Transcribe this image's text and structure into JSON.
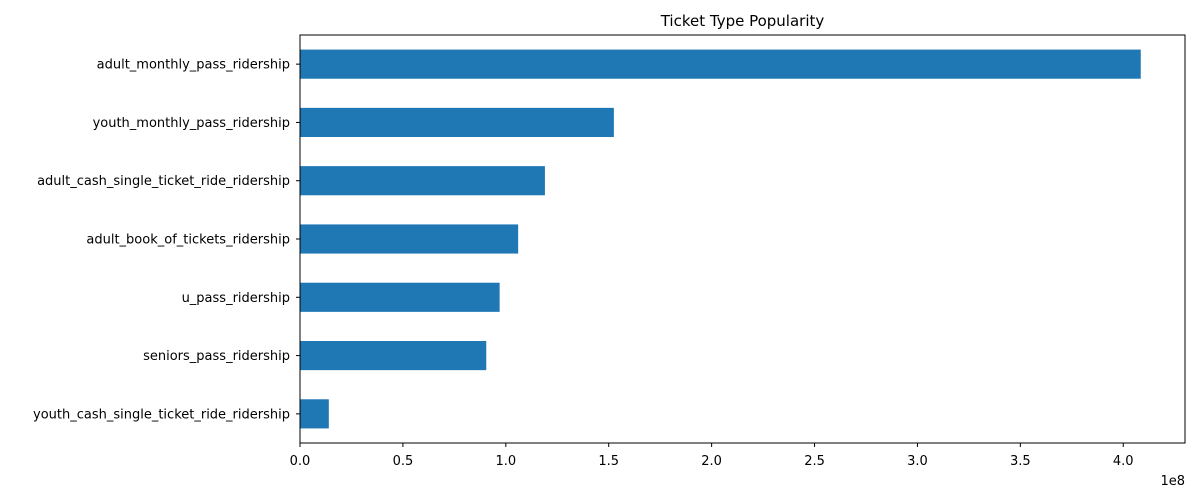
{
  "chart_data": {
    "type": "bar",
    "orientation": "horizontal",
    "title": "Ticket Type Popularity",
    "xlabel": "",
    "ylabel": "",
    "x_offset_label": "1e8",
    "xlim": [
      0,
      4.3
    ],
    "xticks": [
      "0.0",
      "0.5",
      "1.0",
      "1.5",
      "2.0",
      "2.5",
      "3.0",
      "3.5",
      "4.0"
    ],
    "xtick_values": [
      0,
      0.5,
      1.0,
      1.5,
      2.0,
      2.5,
      3.0,
      3.5,
      4.0
    ],
    "categories": [
      "adult_monthly_pass_ridership",
      "youth_monthly_pass_ridership",
      "adult_cash_single_ticket_ride_ridership",
      "adult_book_of_tickets_ridership",
      "u_pass_ridership",
      "seniors_pass_ridership",
      "youth_cash_single_ticket_ride_ridership"
    ],
    "values": [
      4.085,
      1.525,
      1.19,
      1.06,
      0.97,
      0.905,
      0.14
    ],
    "bar_color": "#1f77b4",
    "grid": false,
    "legend": "none"
  }
}
